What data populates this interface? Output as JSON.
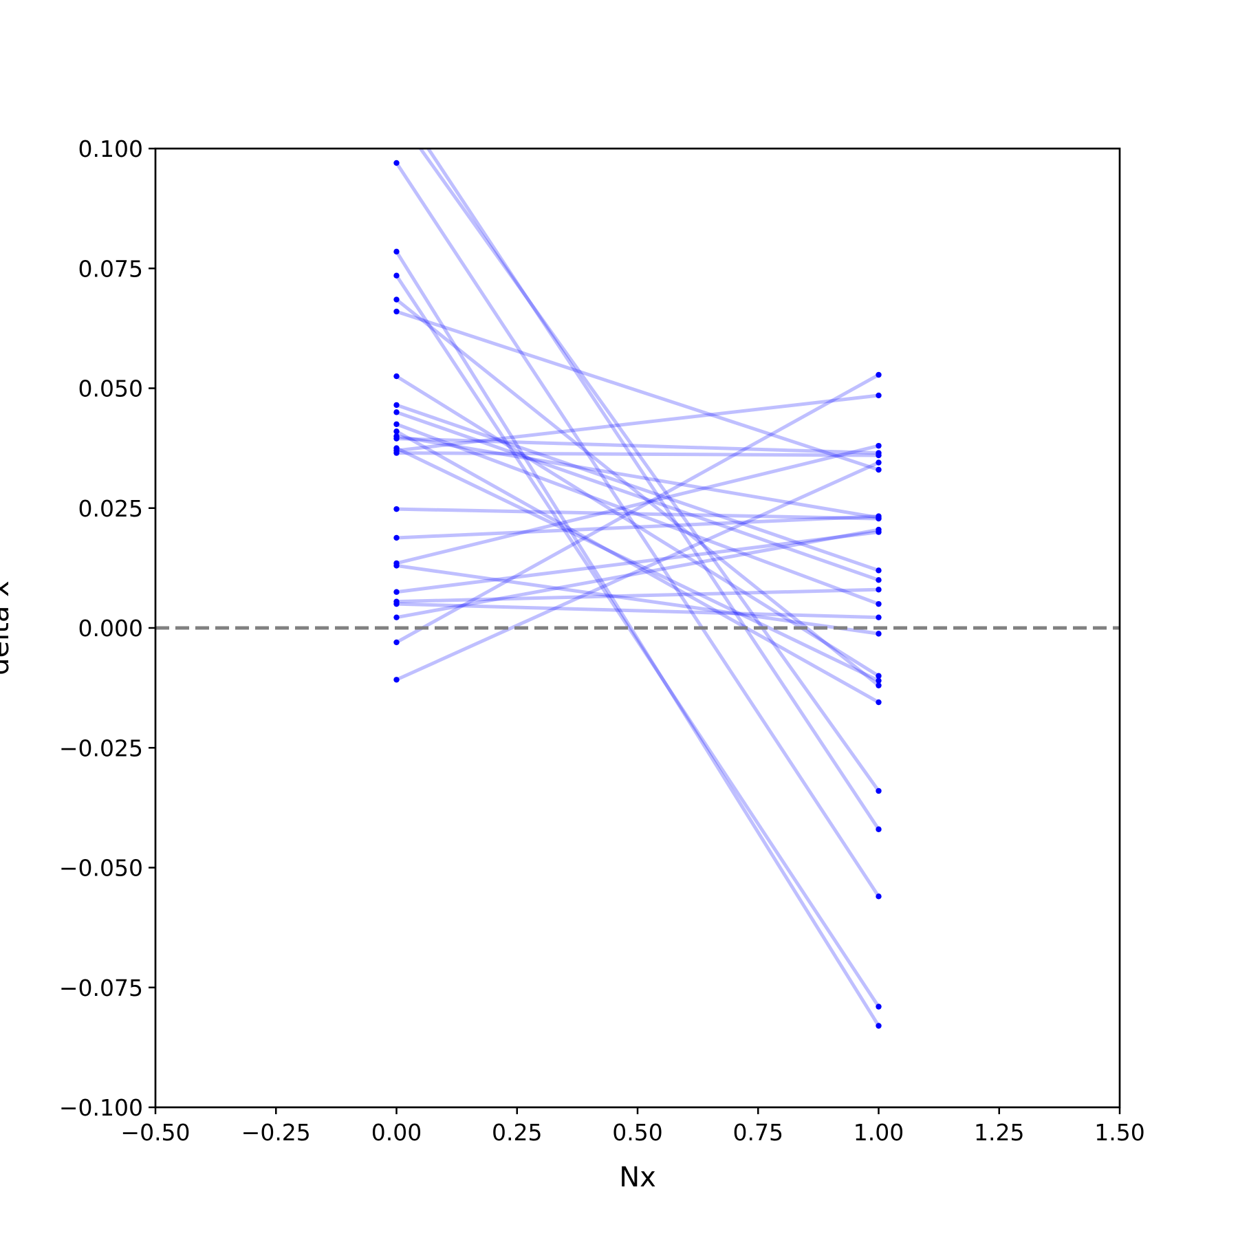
{
  "chart_data": {
    "type": "line",
    "title": "",
    "xlabel": "Nx",
    "ylabel": "delta x",
    "xlim": [
      -0.5,
      1.5
    ],
    "ylim": [
      -0.1,
      0.1
    ],
    "xticks": [
      "−0.50",
      "−0.25",
      "0.00",
      "0.25",
      "0.50",
      "0.75",
      "1.00",
      "1.25",
      "1.50"
    ],
    "yticks": [
      "−0.100",
      "−0.075",
      "−0.050",
      "−0.025",
      "0.000",
      "0.025",
      "0.050",
      "0.075",
      "0.100"
    ],
    "grid": false,
    "legend": "none",
    "line_color": "#0000ff",
    "line_alpha": 0.25,
    "marker_color": "#0000ff",
    "reference_line": {
      "y": 0.0,
      "style": "dashed",
      "color": "#808080"
    },
    "x": [
      0,
      1
    ],
    "pairs": [
      [
        0.11,
        -0.042
      ],
      [
        0.107,
        -0.034
      ],
      [
        0.097,
        -0.056
      ],
      [
        0.0785,
        -0.083
      ],
      [
        0.0735,
        -0.079
      ],
      [
        0.0685,
        -0.012
      ],
      [
        0.066,
        0.033
      ],
      [
        0.0525,
        -0.01
      ],
      [
        0.0465,
        0.012
      ],
      [
        0.045,
        0.01
      ],
      [
        0.0425,
        0.005
      ],
      [
        0.041,
        -0.0155
      ],
      [
        0.04,
        0.023
      ],
      [
        0.0395,
        0.0365
      ],
      [
        0.0375,
        -0.011
      ],
      [
        0.037,
        0.0485
      ],
      [
        0.0365,
        0.036
      ],
      [
        0.0248,
        0.0228
      ],
      [
        0.0188,
        0.0233
      ],
      [
        0.0135,
        0.038
      ],
      [
        0.013,
        -0.0012
      ],
      [
        0.0075,
        0.02
      ],
      [
        0.0055,
        0.008
      ],
      [
        0.005,
        0.0022
      ],
      [
        0.0022,
        0.0205
      ],
      [
        -0.003,
        0.0528
      ],
      [
        -0.0108,
        0.0345
      ]
    ]
  }
}
